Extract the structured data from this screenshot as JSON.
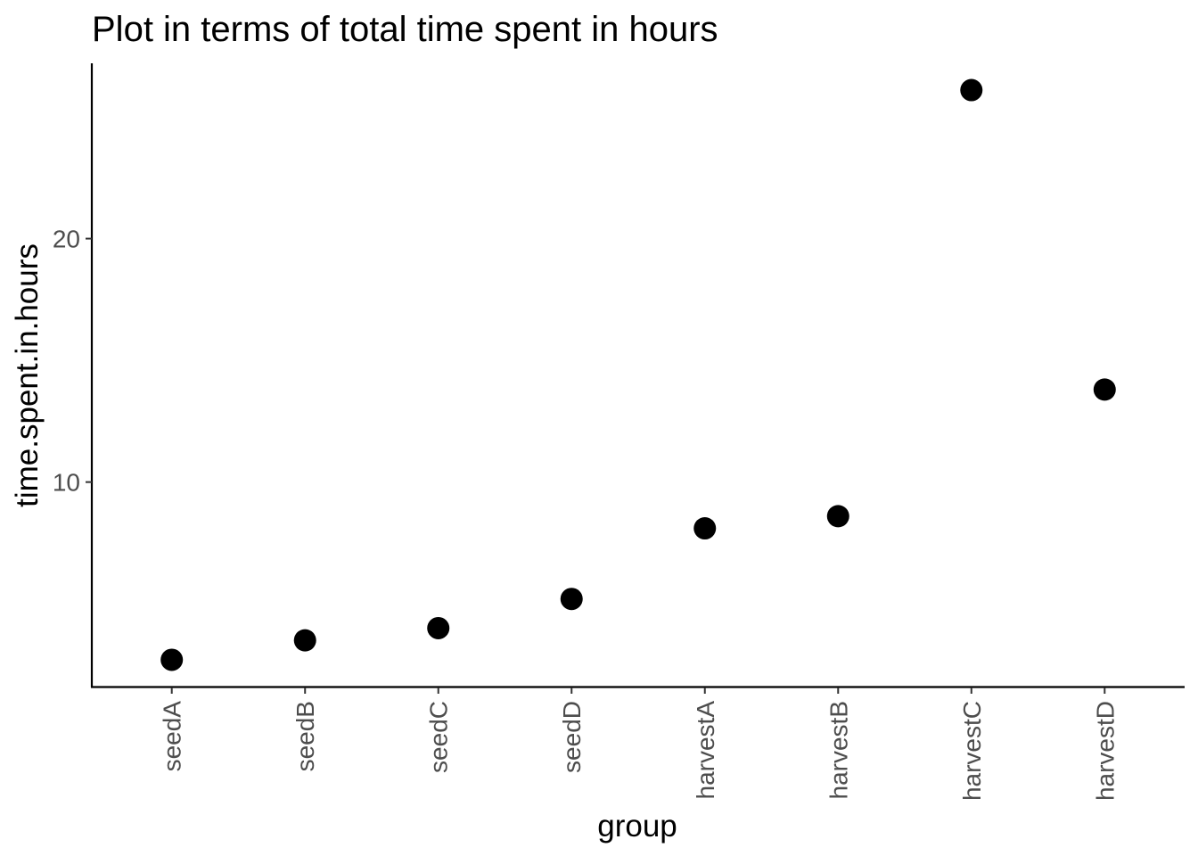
{
  "chart_data": {
    "type": "scatter",
    "title": "Plot in terms of total time spent in hours",
    "xlabel": "group",
    "ylabel": "time.spent.in.hours",
    "categories": [
      "seedA",
      "seedB",
      "seedC",
      "seedD",
      "harvestA",
      "harvestB",
      "harvestC",
      "harvestD"
    ],
    "series": [
      {
        "values": [
          2.7,
          3.5,
          4.0,
          5.2,
          8.1,
          8.6,
          26.1,
          13.8
        ]
      }
    ],
    "y_ticks": [
      10,
      20
    ],
    "ylim": [
      1.6,
      27.2
    ],
    "grid": false,
    "legend": "none",
    "colors": {
      "point": "#000000",
      "axis": "#000000",
      "tick_label": "#4d4d4d"
    }
  }
}
